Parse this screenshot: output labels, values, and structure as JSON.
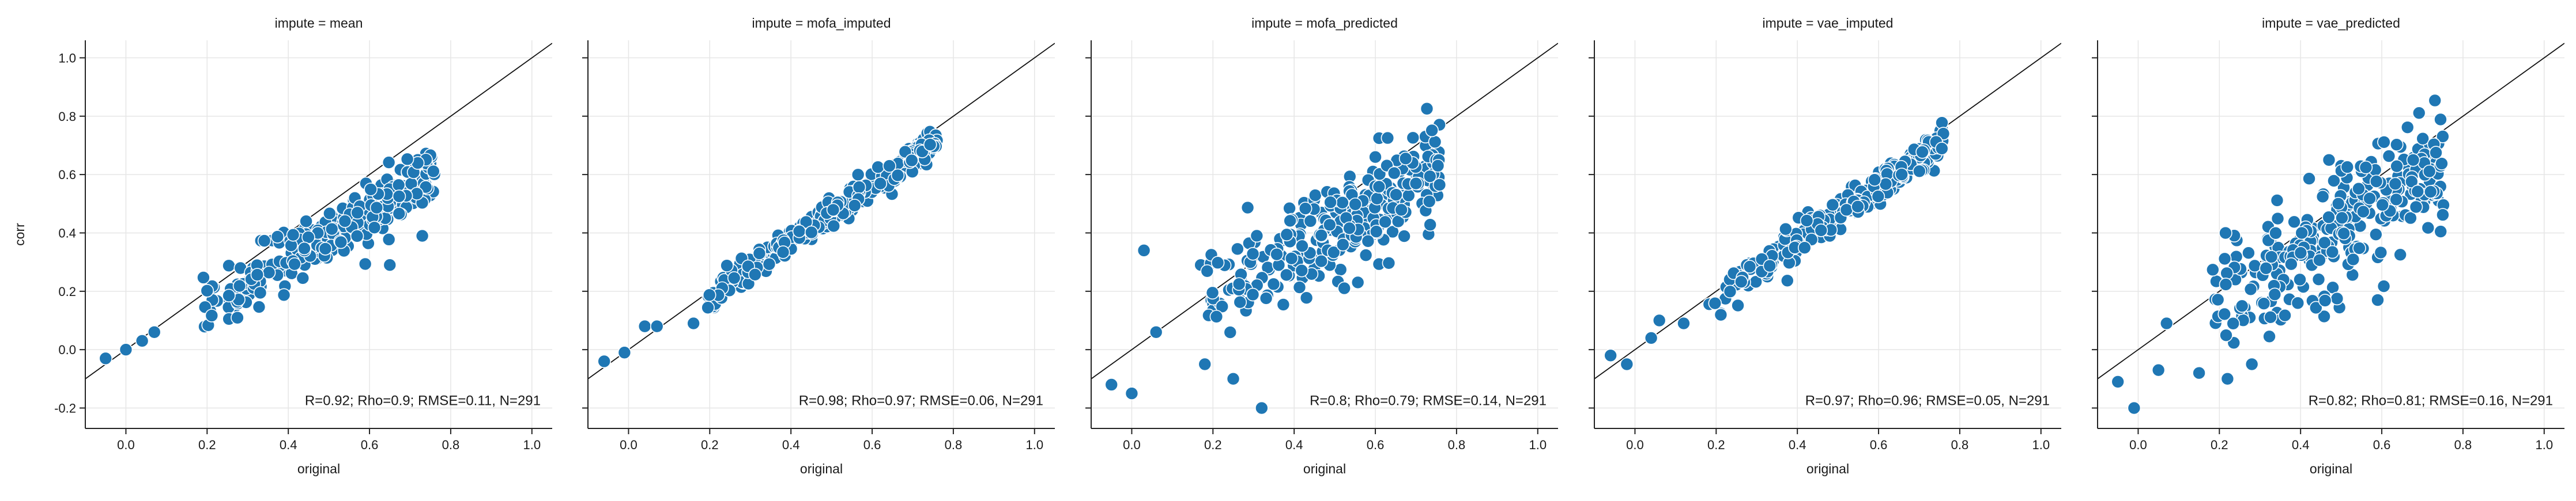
{
  "chart_data": {
    "type": "scatter",
    "layout": "facet-row",
    "shared_y": true,
    "xlabel": "original",
    "ylabel": "corr",
    "xlim": [
      -0.1,
      1.05
    ],
    "ylim": [
      -0.27,
      1.06
    ],
    "xticks": [
      0.0,
      0.2,
      0.4,
      0.6,
      0.8,
      1.0
    ],
    "yticks": [
      -0.2,
      0.0,
      0.2,
      0.4,
      0.6,
      0.8,
      1.0
    ],
    "grid": true,
    "reference_line": "y = x",
    "marker_color": "#1f77b4",
    "panels": [
      {
        "title": "impute = mean",
        "stats": "R=0.92; Rho=0.9; RMSE=0.11, N=291",
        "slope": 0.82,
        "intercept": -0.02,
        "noise": 0.045,
        "seed": 11
      },
      {
        "title": "impute = mofa_imputed",
        "stats": "R=0.98; Rho=0.97; RMSE=0.06, N=291",
        "slope": 0.95,
        "intercept": -0.01,
        "noise": 0.025,
        "seed": 23
      },
      {
        "title": "impute = mofa_predicted",
        "stats": "R=0.8; Rho=0.79; RMSE=0.14, N=291",
        "slope": 0.8,
        "intercept": 0.02,
        "noise": 0.085,
        "seed": 37
      },
      {
        "title": "impute = vae_imputed",
        "stats": "R=0.97; Rho=0.96; RMSE=0.05, N=291",
        "slope": 0.95,
        "intercept": -0.01,
        "noise": 0.03,
        "seed": 41
      },
      {
        "title": "impute = vae_predicted",
        "stats": "R=0.82; Rho=0.81; RMSE=0.16, N=291",
        "slope": 0.85,
        "intercept": -0.01,
        "noise": 0.1,
        "seed": 53
      }
    ]
  }
}
